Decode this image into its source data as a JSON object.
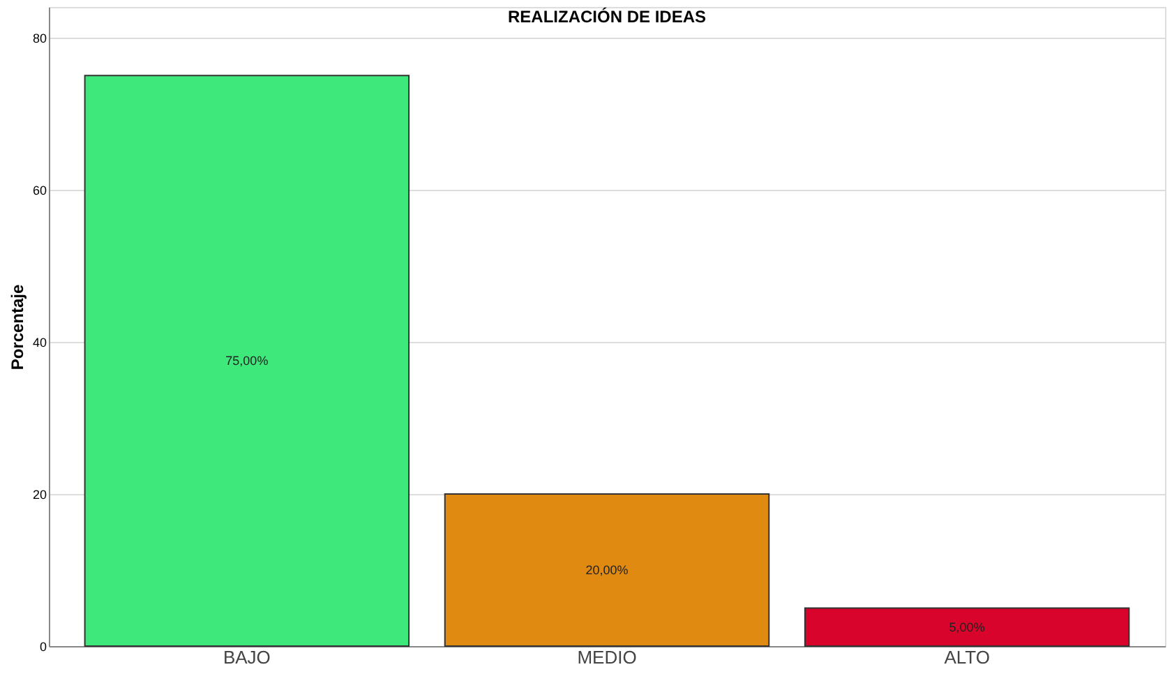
{
  "chart_data": {
    "type": "bar",
    "title": "REALIZACIÓN DE IDEAS",
    "ylabel": "Porcentaje",
    "categories": [
      "BAJO",
      "MEDIO",
      "ALTO"
    ],
    "values": [
      75,
      20,
      5
    ],
    "colors": [
      "#3fe87a",
      "#e08a12",
      "#d9042b"
    ],
    "value_labels": [
      "75,00%",
      "20,00%",
      "5,00%"
    ],
    "ylim": [
      0,
      84
    ],
    "yticks": [
      0,
      20,
      40,
      60,
      80
    ],
    "grid": "y"
  }
}
